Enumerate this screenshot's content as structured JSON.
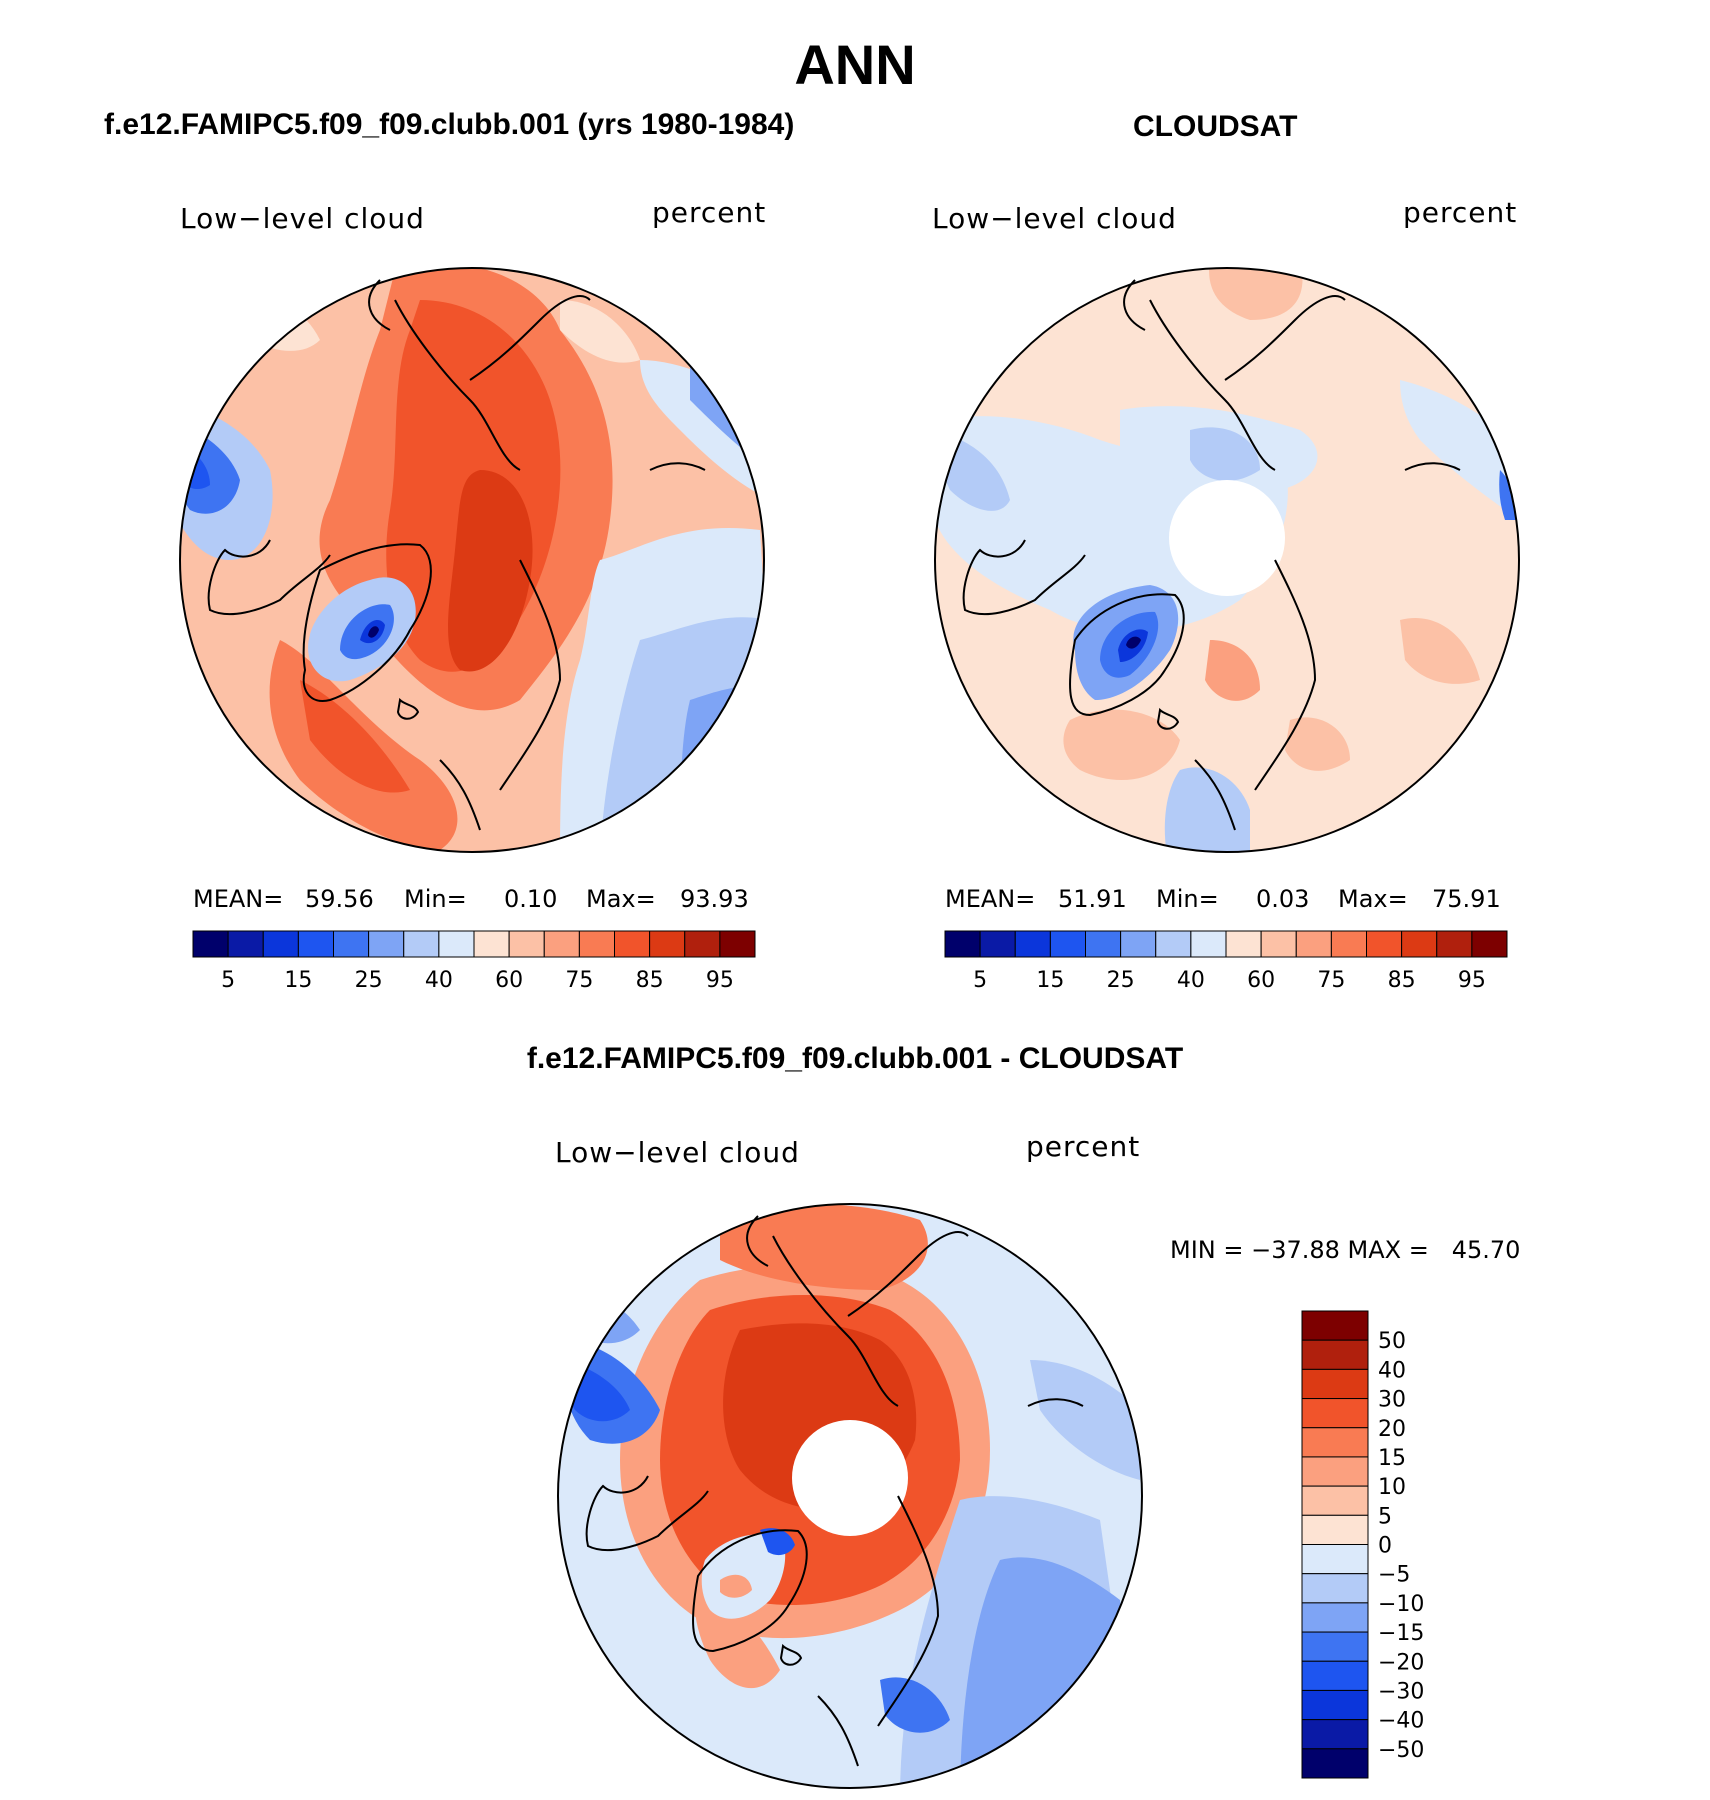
{
  "title": "ANN",
  "panels": {
    "model": {
      "title": "f.e12.FAMIPC5.f09_f09.clubb.001 (yrs 1980-1984)",
      "variable": "Low−level cloud",
      "units": "percent",
      "stats": {
        "mean_label": "MEAN=",
        "mean": "59.56",
        "min_label": "Min=",
        "min": "0.10",
        "max_label": "Max=",
        "max": "93.93"
      }
    },
    "obs": {
      "title": "CLOUDSAT",
      "variable": "Low−level cloud",
      "units": "percent",
      "stats": {
        "mean_label": "MEAN=",
        "mean": "51.91",
        "min_label": "Min=",
        "min": "0.03",
        "max_label": "Max=",
        "max": "75.91"
      }
    },
    "diff": {
      "title": "f.e12.FAMIPC5.f09_f09.clubb.001 - CLOUDSAT",
      "variable": "Low−level cloud",
      "units": "percent",
      "minmax": "MIN = −37.88 MAX =   45.70"
    }
  },
  "abs_colorbar": {
    "tick_labels": [
      "5",
      "15",
      "25",
      "40",
      "60",
      "75",
      "85",
      "95"
    ],
    "colors": [
      "#00006b",
      "#0a1aa6",
      "#0b36db",
      "#1e55f0",
      "#3e74f2",
      "#7ea4f5",
      "#b3cbf7",
      "#dbe9fa",
      "#fde3d3",
      "#fcc1a6",
      "#fba07f",
      "#f97b53",
      "#f1542b",
      "#dc3a14",
      "#b0200d",
      "#7d0000"
    ]
  },
  "diff_colorbar": {
    "tick_labels": [
      "50",
      "40",
      "30",
      "20",
      "15",
      "10",
      "5",
      "0",
      "−5",
      "−10",
      "−15",
      "−20",
      "−30",
      "−40",
      "−50"
    ],
    "colors_top_to_bottom": [
      "#7d0000",
      "#b0200d",
      "#dc3a14",
      "#f1542b",
      "#f97b53",
      "#fba07f",
      "#fcc1a6",
      "#fde3d3",
      "#dbe9fa",
      "#b3cbf7",
      "#7ea4f5",
      "#3e74f2",
      "#1e55f0",
      "#0b36db",
      "#0a1aa6",
      "#00006b"
    ]
  },
  "colors": {
    "land_outline": "#000000",
    "background": "#ffffff"
  }
}
